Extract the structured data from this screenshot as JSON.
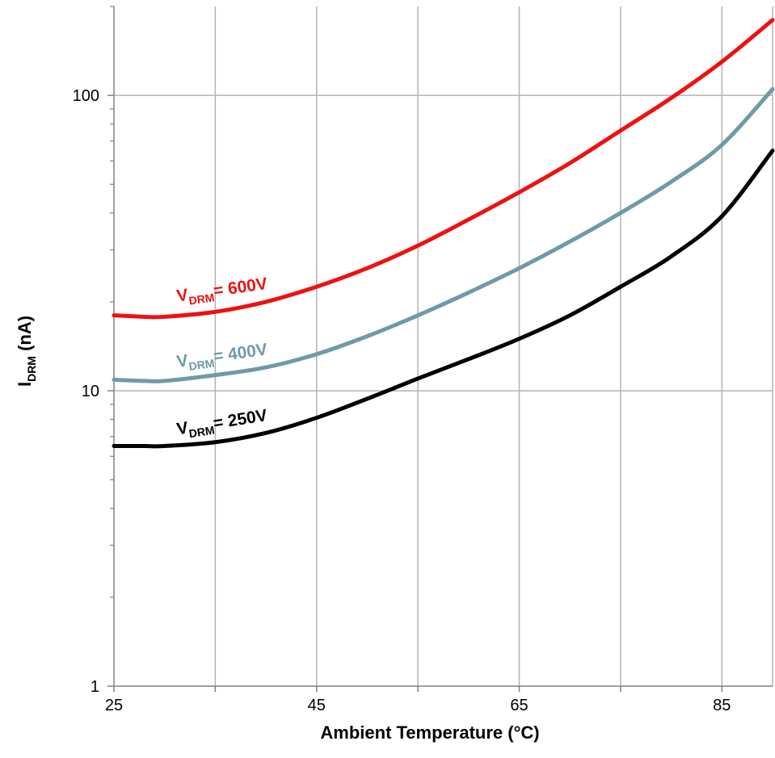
{
  "chart_data": {
    "type": "line",
    "title": "",
    "xlabel": "Ambient Temperature (°C)",
    "ylabel": {
      "main": "I",
      "sub": "DRM",
      "rest": " (nA)"
    },
    "xlim": [
      25,
      90
    ],
    "ylim": [
      1,
      200
    ],
    "y_scale": "log",
    "grid": true,
    "x_major_ticks": [
      25,
      45,
      65,
      85
    ],
    "x_minor_ticks": [
      35,
      55,
      75
    ],
    "y_major_ticks": [
      1,
      10,
      100
    ],
    "y_tick_labels": [
      "1",
      "10",
      "100"
    ],
    "x_tick_labels": [
      "25",
      "45",
      "65",
      "85"
    ],
    "legend": "inline labels",
    "series": [
      {
        "name": "VDRM= 600V",
        "label_main": "V",
        "label_sub": "DRM",
        "label_rest": "= 600V",
        "color": "#ee1111",
        "x": [
          25,
          28,
          30,
          35,
          40,
          45,
          50,
          55,
          60,
          65,
          70,
          75,
          80,
          85,
          90
        ],
        "y": [
          18.0,
          17.8,
          17.8,
          18.5,
          20.0,
          22.5,
          26.0,
          31.0,
          38.0,
          47.0,
          59.0,
          76.0,
          98.0,
          130.0,
          180.0
        ]
      },
      {
        "name": "VDRM= 400V",
        "label_main": "V",
        "label_sub": "DRM",
        "label_rest": "= 400V",
        "color": "#6f9aa8",
        "x": [
          25,
          28,
          30,
          35,
          40,
          45,
          50,
          55,
          60,
          65,
          70,
          75,
          80,
          85,
          90
        ],
        "y": [
          10.9,
          10.8,
          10.8,
          11.3,
          12.0,
          13.3,
          15.3,
          18.0,
          21.5,
          26.0,
          32.0,
          40.0,
          51.0,
          68.0,
          105.0
        ]
      },
      {
        "name": "VDRM= 250V",
        "label_main": "V",
        "label_sub": "DRM",
        "label_rest": "= 250V",
        "color": "#000000",
        "x": [
          25,
          28,
          30,
          35,
          40,
          45,
          50,
          55,
          60,
          65,
          70,
          75,
          80,
          85,
          90
        ],
        "y": [
          6.5,
          6.5,
          6.5,
          6.7,
          7.2,
          8.1,
          9.4,
          11.0,
          12.8,
          15.0,
          18.0,
          22.5,
          28.5,
          39.0,
          65.0
        ]
      }
    ]
  }
}
